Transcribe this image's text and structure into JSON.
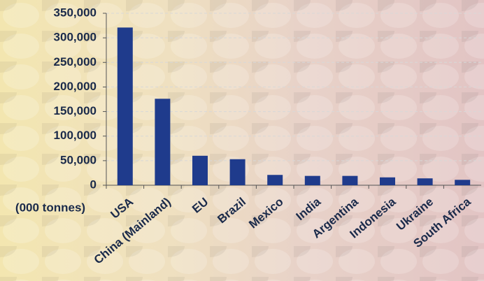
{
  "chart_data": {
    "type": "bar",
    "y_label": "(000 tonnes)",
    "categories": [
      "USA",
      "China (Mainland)",
      "EU",
      "Brazil",
      "Mexico",
      "India",
      "Argentina",
      "Indonesia",
      "Ukraine",
      "South Africa"
    ],
    "values": [
      321000,
      176000,
      60000,
      53000,
      21000,
      19000,
      19000,
      16000,
      14000,
      11000
    ],
    "color": "#1f3b8c",
    "ylim": [
      0,
      350000
    ],
    "yticks": [
      0,
      {
        "value": 50000,
        "label": "50,000"
      },
      {
        "value": 100000,
        "label": "100,000"
      },
      {
        "value": 150000,
        "label": "150,000"
      },
      {
        "value": 200000,
        "label": "200,000"
      },
      {
        "value": 250000,
        "label": "250,000"
      },
      {
        "value": 300000,
        "label": "300,000"
      },
      {
        "value": 350000,
        "label": "350,000"
      }
    ],
    "grid": true
  }
}
